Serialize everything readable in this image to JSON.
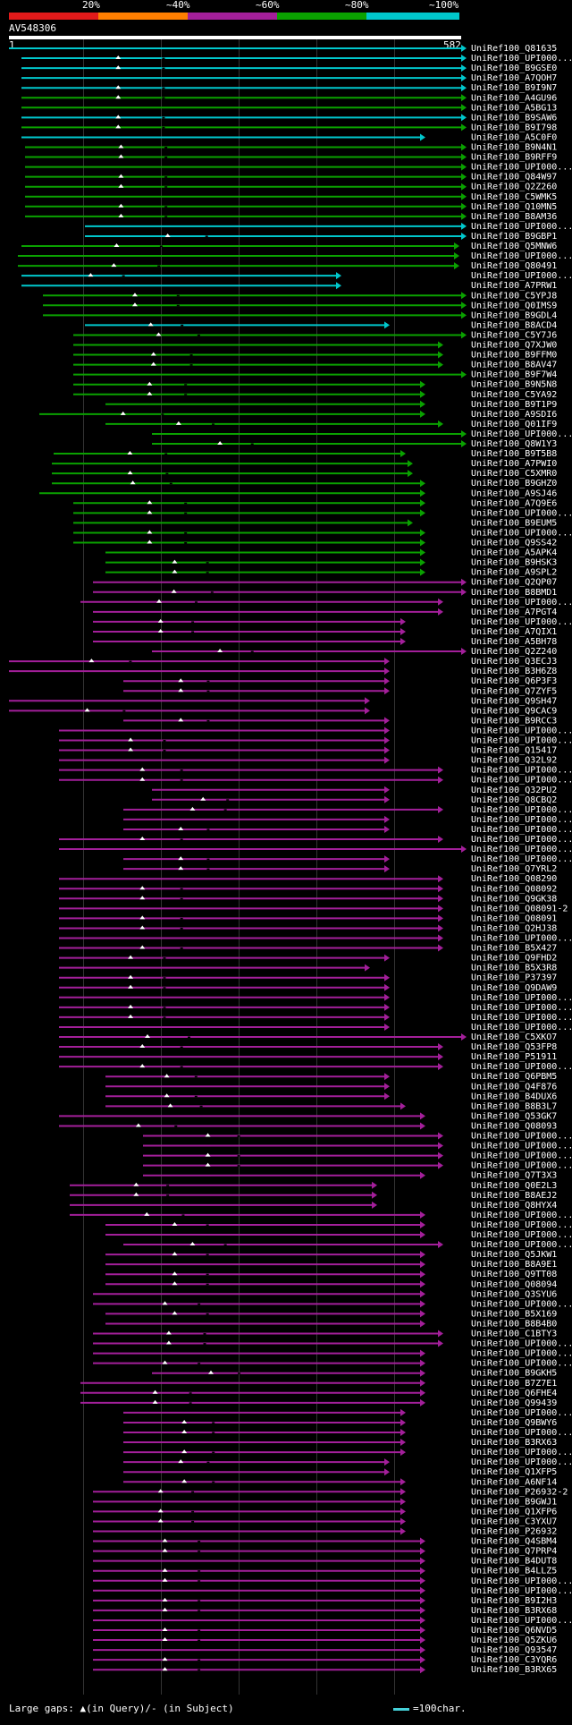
{
  "legend": {
    "labels": [
      "20%",
      "~40%",
      "~60%",
      "~80%",
      "~100%"
    ],
    "colors": [
      "#e21a1a",
      "#ff7f00",
      "#a31f9a",
      "#0aa100",
      "#00c7cc"
    ]
  },
  "query": {
    "title": "AV548306",
    "start": "1",
    "end": "582"
  },
  "legend_note": {
    "large_gaps": "Large gaps: ▲(in Query)/- (in Subject)",
    "scale_key": "=100char."
  },
  "hits": [
    {
      "label": "UniRef100_Q81635",
      "color": "#00c7cc"
    },
    {
      "label": "UniRef100_UPI000...",
      "color": "#00c7cc"
    },
    {
      "label": "UniRef100_B9GSE0",
      "color": "#00c7cc"
    },
    {
      "label": "UniRef100_A7QOH7",
      "color": "#00c7cc"
    },
    {
      "label": "UniRef100_B9I9N7",
      "color": "#00c7cc"
    },
    {
      "label": "UniRef100_A4GU96",
      "color": "#0aa100"
    },
    {
      "label": "UniRef100_A5BG13",
      "color": "#0aa100"
    },
    {
      "label": "UniRef100_B9SAW6",
      "color": "#00c7cc"
    },
    {
      "label": "UniRef100_B9I798",
      "color": "#0aa100"
    },
    {
      "label": "UniRef100_A5C0F0",
      "color": "#00c7cc"
    },
    {
      "label": "UniRef100_B9N4N1",
      "color": "#0aa100"
    },
    {
      "label": "UniRef100_B9RFF9",
      "color": "#0aa100"
    },
    {
      "label": "UniRef100_UPI000...",
      "color": "#0aa100"
    },
    {
      "label": "UniRef100_Q84W97",
      "color": "#0aa100"
    },
    {
      "label": "UniRef100_Q2Z260",
      "color": "#0aa100"
    },
    {
      "label": "UniRef100_C5WMK5",
      "color": "#0aa100"
    },
    {
      "label": "UniRef100_Q10MN5",
      "color": "#0aa100"
    },
    {
      "label": "UniRef100_B8AM36",
      "color": "#0aa100"
    },
    {
      "label": "UniRef100_UPI000...",
      "color": "#00c7cc"
    },
    {
      "label": "UniRef100_B9GBP1",
      "color": "#00c7cc"
    },
    {
      "label": "UniRef100_Q5MNW6",
      "color": "#0aa100"
    },
    {
      "label": "UniRef100_UPI000...",
      "color": "#0aa100"
    },
    {
      "label": "UniRef100_Q80491",
      "color": "#0aa100"
    },
    {
      "label": "UniRef100_UPI000...",
      "color": "#00c7cc"
    },
    {
      "label": "UniRef100_A7PRW1",
      "color": "#00c7cc"
    },
    {
      "label": "UniRef100_C5YPJ8",
      "color": "#0aa100"
    },
    {
      "label": "UniRef100_Q0IMS9",
      "color": "#0aa100"
    },
    {
      "label": "UniRef100_B9GDL4",
      "color": "#0aa100"
    },
    {
      "label": "UniRef100_B8ACD4",
      "color": "#00c7cc"
    },
    {
      "label": "UniRef100_C5Y7J6",
      "color": "#0aa100"
    },
    {
      "label": "UniRef100_Q7XJW0",
      "color": "#0aa100"
    },
    {
      "label": "UniRef100_B9FFM0",
      "color": "#0aa100"
    },
    {
      "label": "UniRef100_B8AV47",
      "color": "#0aa100"
    },
    {
      "label": "UniRef100_B9F7W4",
      "color": "#0aa100"
    },
    {
      "label": "UniRef100_B9N5N8",
      "color": "#0aa100"
    },
    {
      "label": "UniRef100_C5YA92",
      "color": "#0aa100"
    },
    {
      "label": "UniRef100_B9T1P9",
      "color": "#0aa100"
    },
    {
      "label": "UniRef100_A9SDI6",
      "color": "#0aa100"
    },
    {
      "label": "UniRef100_Q01IF9",
      "color": "#0aa100"
    },
    {
      "label": "UniRef100_UPI000...",
      "color": "#0aa100"
    },
    {
      "label": "UniRef100_Q8W1Y3",
      "color": "#0aa100"
    },
    {
      "label": "UniRef100_B9T5B8",
      "color": "#0aa100"
    },
    {
      "label": "UniRef100_A7PWI0",
      "color": "#0aa100"
    },
    {
      "label": "UniRef100_C5XMR0",
      "color": "#0aa100"
    },
    {
      "label": "UniRef100_B9GHZ0",
      "color": "#0aa100"
    },
    {
      "label": "UniRef100_A9SJ46",
      "color": "#0aa100"
    },
    {
      "label": "UniRef100_A7Q9E6",
      "color": "#0aa100"
    },
    {
      "label": "UniRef100_UPI000...",
      "color": "#0aa100"
    },
    {
      "label": "UniRef100_B9EUM5",
      "color": "#0aa100"
    },
    {
      "label": "UniRef100_UPI000...",
      "color": "#0aa100"
    },
    {
      "label": "UniRef100_Q9SS42",
      "color": "#0aa100"
    },
    {
      "label": "UniRef100_A5APK4",
      "color": "#0aa100"
    },
    {
      "label": "UniRef100_B9HSK3",
      "color": "#0aa100"
    },
    {
      "label": "UniRef100_A9SPL2",
      "color": "#0aa100"
    },
    {
      "label": "UniRef100_Q2QP07",
      "color": "#a31f9a"
    },
    {
      "label": "UniRef100_B8BMD1",
      "color": "#a31f9a"
    },
    {
      "label": "UniRef100_UPI000...",
      "color": "#a31f9a"
    },
    {
      "label": "UniRef100_A7PGT4",
      "color": "#a31f9a"
    },
    {
      "label": "UniRef100_UPI000...",
      "color": "#a31f9a"
    },
    {
      "label": "UniRef100_A7QIX1",
      "color": "#a31f9a"
    },
    {
      "label": "UniRef100_A5BH78",
      "color": "#a31f9a"
    },
    {
      "label": "UniRef100_Q2Z240",
      "color": "#a31f9a"
    },
    {
      "label": "UniRef100_Q3ECJ3",
      "color": "#a31f9a"
    },
    {
      "label": "UniRef100_B3H6Z8",
      "color": "#a31f9a"
    },
    {
      "label": "UniRef100_Q6P3F3",
      "color": "#a31f9a"
    },
    {
      "label": "UniRef100_Q7ZYF5",
      "color": "#a31f9a"
    },
    {
      "label": "UniRef100_Q9SH47",
      "color": "#a31f9a"
    },
    {
      "label": "UniRef100_Q9CAC9",
      "color": "#a31f9a"
    },
    {
      "label": "UniRef100_B9RCC3",
      "color": "#a31f9a"
    },
    {
      "label": "UniRef100_UPI000...",
      "color": "#a31f9a"
    },
    {
      "label": "UniRef100_UPI000...",
      "color": "#a31f9a"
    },
    {
      "label": "UniRef100_Q15417",
      "color": "#a31f9a"
    },
    {
      "label": "UniRef100_Q32L92",
      "color": "#a31f9a"
    },
    {
      "label": "UniRef100_UPI000...",
      "color": "#a31f9a"
    },
    {
      "label": "UniRef100_UPI000...",
      "color": "#a31f9a"
    },
    {
      "label": "UniRef100_Q32PU2",
      "color": "#a31f9a"
    },
    {
      "label": "UniRef100_Q8CBQ2",
      "color": "#a31f9a"
    },
    {
      "label": "UniRef100_UPI000...",
      "color": "#a31f9a"
    },
    {
      "label": "UniRef100_UPI000...",
      "color": "#a31f9a"
    },
    {
      "label": "UniRef100_UPI000...",
      "color": "#a31f9a"
    },
    {
      "label": "UniRef100_UPI000...",
      "color": "#a31f9a"
    },
    {
      "label": "UniRef100_UPI000...",
      "color": "#a31f9a"
    },
    {
      "label": "UniRef100_UPI000...",
      "color": "#a31f9a"
    },
    {
      "label": "UniRef100_Q7YRL2",
      "color": "#a31f9a"
    },
    {
      "label": "UniRef100_Q08290",
      "color": "#a31f9a"
    },
    {
      "label": "UniRef100_Q08092",
      "color": "#a31f9a"
    },
    {
      "label": "UniRef100_Q9GK38",
      "color": "#a31f9a"
    },
    {
      "label": "UniRef100_Q08091-2",
      "color": "#a31f9a"
    },
    {
      "label": "UniRef100_Q08091",
      "color": "#a31f9a"
    },
    {
      "label": "UniRef100_Q2HJ38",
      "color": "#a31f9a"
    },
    {
      "label": "UniRef100_UPI000...",
      "color": "#a31f9a"
    },
    {
      "label": "UniRef100_B5X427",
      "color": "#a31f9a"
    },
    {
      "label": "UniRef100_Q9FHD2",
      "color": "#a31f9a"
    },
    {
      "label": "UniRef100_B5X3R8",
      "color": "#a31f9a"
    },
    {
      "label": "UniRef100_P37397",
      "color": "#a31f9a"
    },
    {
      "label": "UniRef100_Q9DAW9",
      "color": "#a31f9a"
    },
    {
      "label": "UniRef100_UPI000...",
      "color": "#a31f9a"
    },
    {
      "label": "UniRef100_UPI000...",
      "color": "#a31f9a"
    },
    {
      "label": "UniRef100_UPI000...",
      "color": "#a31f9a"
    },
    {
      "label": "UniRef100_UPI000...",
      "color": "#a31f9a"
    },
    {
      "label": "UniRef100_C5XKO7",
      "color": "#a31f9a"
    },
    {
      "label": "UniRef100_Q53FP8",
      "color": "#a31f9a"
    },
    {
      "label": "UniRef100_P51911",
      "color": "#a31f9a"
    },
    {
      "label": "UniRef100_UPI000...",
      "color": "#a31f9a"
    },
    {
      "label": "UniRef100_Q6PBM5",
      "color": "#a31f9a"
    },
    {
      "label": "UniRef100_Q4F876",
      "color": "#a31f9a"
    },
    {
      "label": "UniRef100_B4DUX6",
      "color": "#a31f9a"
    },
    {
      "label": "UniRef100_B8B3L7",
      "color": "#a31f9a"
    },
    {
      "label": "UniRef100_Q53GK7",
      "color": "#a31f9a"
    },
    {
      "label": "UniRef100_Q08093",
      "color": "#a31f9a"
    },
    {
      "label": "UniRef100_UPI000...",
      "color": "#a31f9a"
    },
    {
      "label": "UniRef100_UPI000...",
      "color": "#a31f9a"
    },
    {
      "label": "UniRef100_UPI000...",
      "color": "#a31f9a"
    },
    {
      "label": "UniRef100_UPI000...",
      "color": "#a31f9a"
    },
    {
      "label": "UniRef100_Q7T3X3",
      "color": "#a31f9a"
    },
    {
      "label": "UniRef100_Q0E2L3",
      "color": "#a31f9a"
    },
    {
      "label": "UniRef100_B8AEJ2",
      "color": "#a31f9a"
    },
    {
      "label": "UniRef100_Q8HYX4",
      "color": "#a31f9a"
    },
    {
      "label": "UniRef100_UPI000...",
      "color": "#a31f9a"
    },
    {
      "label": "UniRef100_UPI000...",
      "color": "#a31f9a"
    },
    {
      "label": "UniRef100_UPI000...",
      "color": "#a31f9a"
    },
    {
      "label": "UniRef100_UPI000...",
      "color": "#a31f9a"
    },
    {
      "label": "UniRef100_Q5JKW1",
      "color": "#a31f9a"
    },
    {
      "label": "UniRef100_B8A9E1",
      "color": "#a31f9a"
    },
    {
      "label": "UniRef100_Q9TT08",
      "color": "#a31f9a"
    },
    {
      "label": "UniRef100_Q08094",
      "color": "#a31f9a"
    },
    {
      "label": "UniRef100_Q3SYU6",
      "color": "#a31f9a"
    },
    {
      "label": "UniRef100_UPI000...",
      "color": "#a31f9a"
    },
    {
      "label": "UniRef100_B5X169",
      "color": "#a31f9a"
    },
    {
      "label": "UniRef100_B8B4B0",
      "color": "#a31f9a"
    },
    {
      "label": "UniRef100_C1BTY3",
      "color": "#a31f9a"
    },
    {
      "label": "UniRef100_UPI000...",
      "color": "#a31f9a"
    },
    {
      "label": "UniRef100_UPI000...",
      "color": "#a31f9a"
    },
    {
      "label": "UniRef100_UPI000...",
      "color": "#a31f9a"
    },
    {
      "label": "UniRef100_B9GKH5",
      "color": "#a31f9a"
    },
    {
      "label": "UniRef100_B7Z7E1",
      "color": "#a31f9a"
    },
    {
      "label": "UniRef100_Q6FHE4",
      "color": "#a31f9a"
    },
    {
      "label": "UniRef100_Q99439",
      "color": "#a31f9a"
    },
    {
      "label": "UniRef100_UPI000...",
      "color": "#a31f9a"
    },
    {
      "label": "UniRef100_Q9BWY6",
      "color": "#a31f9a"
    },
    {
      "label": "UniRef100_UPI000...",
      "color": "#a31f9a"
    },
    {
      "label": "UniRef100_B3RX63",
      "color": "#a31f9a"
    },
    {
      "label": "UniRef100_UPI000...",
      "color": "#a31f9a"
    },
    {
      "label": "UniRef100_UPI000...",
      "color": "#a31f9a"
    },
    {
      "label": "UniRef100_Q1XFP5",
      "color": "#a31f9a"
    },
    {
      "label": "UniRef100_A6NF14",
      "color": "#a31f9a"
    },
    {
      "label": "UniRef100_P26932-2",
      "color": "#a31f9a"
    },
    {
      "label": "UniRef100_B9GWJ1",
      "color": "#a31f9a"
    },
    {
      "label": "UniRef100_Q1XFP6",
      "color": "#a31f9a"
    },
    {
      "label": "UniRef100_C3YXU7",
      "color": "#a31f9a"
    },
    {
      "label": "UniRef100_P26932",
      "color": "#a31f9a"
    },
    {
      "label": "UniRef100_Q4SBM4",
      "color": "#a31f9a"
    },
    {
      "label": "UniRef100_Q7PRP4",
      "color": "#a31f9a"
    },
    {
      "label": "UniRef100_B4DUT8",
      "color": "#a31f9a"
    },
    {
      "label": "UniRef100_B4LLZ5",
      "color": "#a31f9a"
    },
    {
      "label": "UniRef100_UPI000...",
      "color": "#a31f9a"
    },
    {
      "label": "UniRef100_UPI000...",
      "color": "#a31f9a"
    },
    {
      "label": "UniRef100_B9I2H3",
      "color": "#a31f9a"
    },
    {
      "label": "UniRef100_B3RX68",
      "color": "#a31f9a"
    },
    {
      "label": "UniRef100_UPI000...",
      "color": "#a31f9a"
    },
    {
      "label": "UniRef100_Q6NVD5",
      "color": "#a31f9a"
    },
    {
      "label": "UniRef100_Q5ZKU6",
      "color": "#a31f9a"
    },
    {
      "label": "UniRef100_Q93547",
      "color": "#a31f9a"
    },
    {
      "label": "UniRef100_C3YQR6",
      "color": "#a31f9a"
    },
    {
      "label": "UniRef100_B3RX65",
      "color": "#a31f9a"
    }
  ]
}
